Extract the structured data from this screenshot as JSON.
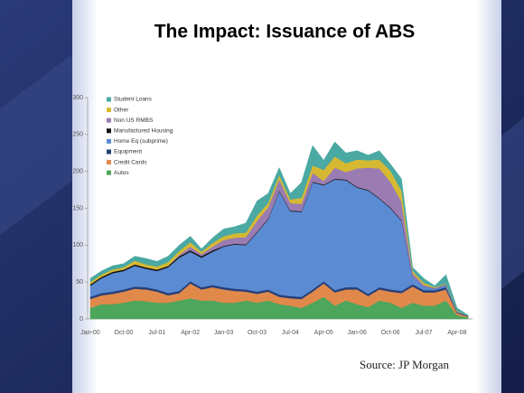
{
  "chart_data": {
    "type": "stacked_area",
    "title": "The Impact: Issuance of ABS",
    "source": "Source: JP Morgan",
    "categories": [
      "Jan-00",
      null,
      null,
      "Oct-00",
      null,
      null,
      "Jul-01",
      null,
      null,
      "Apr-02",
      null,
      null,
      "Jan-03",
      null,
      null,
      "Oct-03",
      null,
      null,
      "Jul-04",
      null,
      null,
      "Apr-05",
      null,
      null,
      "Jan-06",
      null,
      null,
      "Oct-06",
      null,
      null,
      "Jul-07",
      null,
      null,
      "Apr-08",
      null
    ],
    "ylim": [
      0,
      300
    ],
    "yticks": [
      0,
      50,
      100,
      150,
      200,
      250,
      300
    ],
    "legend": "top-left",
    "series": [
      {
        "name": "Autos",
        "color": "#4ea55c",
        "values": [
          15,
          20,
          20,
          22,
          25,
          24,
          22,
          22,
          25,
          28,
          25,
          25,
          22,
          22,
          25,
          22,
          25,
          20,
          18,
          15,
          22,
          30,
          18,
          25,
          20,
          16,
          25,
          22,
          15,
          22,
          18,
          18,
          25,
          5,
          2
        ]
      },
      {
        "name": "Credit Cards",
        "color": "#e0894a",
        "values": [
          12,
          12,
          14,
          15,
          16,
          16,
          15,
          10,
          10,
          20,
          15,
          18,
          18,
          16,
          12,
          12,
          12,
          10,
          10,
          12,
          15,
          18,
          18,
          15,
          20,
          15,
          15,
          15,
          20,
          22,
          18,
          18,
          15,
          3,
          1
        ]
      },
      {
        "name": "Equipment",
        "color": "#263f7a",
        "values": [
          3,
          3,
          3,
          3,
          3,
          3,
          3,
          3,
          3,
          3,
          3,
          3,
          3,
          3,
          3,
          3,
          3,
          3,
          3,
          3,
          3,
          3,
          3,
          3,
          3,
          3,
          3,
          3,
          3,
          3,
          3,
          3,
          3,
          1,
          1
        ]
      },
      {
        "name": "Home Eq (subprime)",
        "color": "#5b8bd2",
        "values": [
          15,
          20,
          25,
          25,
          28,
          25,
          25,
          35,
          45,
          40,
          40,
          45,
          55,
          60,
          60,
          80,
          95,
          140,
          115,
          115,
          145,
          130,
          150,
          145,
          135,
          140,
          120,
          110,
          95,
          10,
          5,
          2,
          3,
          1,
          0
        ]
      },
      {
        "name": "Manufactured Housing",
        "color": "#111111",
        "values": [
          2,
          2,
          2,
          2,
          2,
          2,
          2,
          2,
          2,
          2,
          2,
          2,
          1,
          1,
          1,
          1,
          1,
          1,
          1,
          1,
          1,
          1,
          1,
          1,
          1,
          1,
          1,
          1,
          1,
          0,
          0,
          0,
          0,
          0,
          0
        ]
      },
      {
        "name": "Non US RMBS",
        "color": "#9a7cb2",
        "values": [
          0,
          0,
          0,
          0,
          0,
          0,
          0,
          0,
          2,
          5,
          3,
          5,
          8,
          8,
          10,
          15,
          15,
          15,
          10,
          10,
          12,
          5,
          15,
          10,
          25,
          30,
          40,
          35,
          25,
          5,
          2,
          1,
          1,
          0,
          0
        ]
      },
      {
        "name": "Other",
        "color": "#d6b932",
        "values": [
          3,
          3,
          3,
          3,
          5,
          4,
          4,
          5,
          5,
          6,
          3,
          5,
          5,
          6,
          6,
          7,
          6,
          6,
          5,
          8,
          10,
          15,
          15,
          12,
          12,
          10,
          12,
          15,
          15,
          3,
          3,
          1,
          1,
          1,
          0
        ]
      },
      {
        "name": "Student Loans",
        "color": "#4aa9a2",
        "values": [
          5,
          5,
          5,
          5,
          6,
          8,
          7,
          8,
          8,
          8,
          4,
          7,
          10,
          9,
          13,
          20,
          13,
          10,
          8,
          21,
          27,
          13,
          20,
          14,
          12,
          7,
          12,
          9,
          16,
          5,
          6,
          2,
          12,
          4,
          1
        ]
      }
    ]
  }
}
